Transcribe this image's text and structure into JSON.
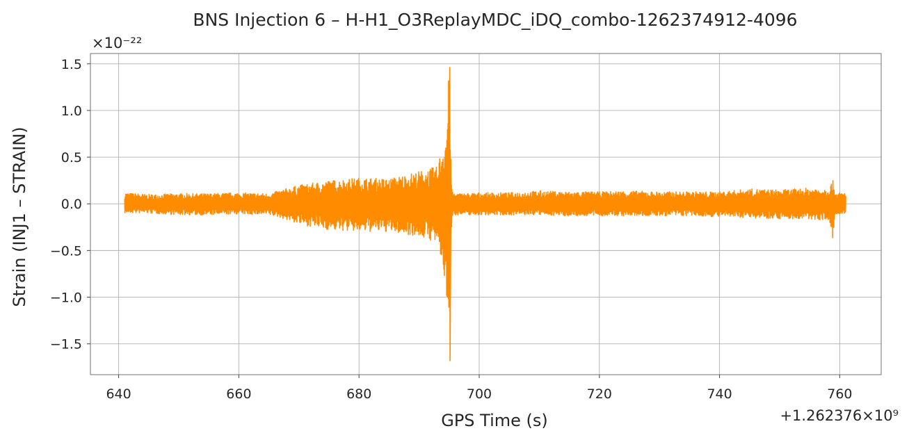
{
  "chart_data": {
    "type": "line",
    "title": "BNS Injection 6 – H-H1_O3ReplayMDC_iDQ_combo-1262374912-4096",
    "xlabel": "GPS Time (s)",
    "ylabel": "Strain (INJ1 – STRAIN)",
    "x_offset_label": "+1.262376×10⁹",
    "y_scale_label": "×10⁻²²",
    "x_ticks": [
      640,
      660,
      680,
      700,
      720,
      740,
      760
    ],
    "x_tick_labels": [
      "640",
      "660",
      "680",
      "700",
      "720",
      "740",
      "760"
    ],
    "y_ticks": [
      -1.5,
      -1.0,
      -0.5,
      0.0,
      0.5,
      1.0,
      1.5
    ],
    "y_tick_labels": [
      "−1.5",
      "−1.0",
      "−0.5",
      "0.0",
      "0.5",
      "1.0",
      "1.5"
    ],
    "xlim": [
      635.3,
      766.9
    ],
    "ylim": [
      -1.83,
      1.61
    ],
    "grid": true,
    "line_color": "#ff8c00",
    "series": [
      {
        "x": [
          641,
          645,
          650,
          655,
          660,
          665,
          667,
          670,
          675,
          680,
          685,
          690,
          693,
          694.5,
          695,
          695.2,
          695.5,
          696,
          700,
          705,
          710,
          715,
          720,
          725,
          730,
          735,
          740,
          745,
          750,
          755,
          758,
          759,
          759.2,
          760,
          761
        ],
        "upper": [
          0.12,
          0.1,
          0.11,
          0.11,
          0.12,
          0.11,
          0.15,
          0.2,
          0.25,
          0.28,
          0.27,
          0.35,
          0.4,
          0.8,
          1.46,
          0.6,
          0.14,
          0.11,
          0.12,
          0.12,
          0.14,
          0.13,
          0.13,
          0.14,
          0.13,
          0.13,
          0.13,
          0.16,
          0.15,
          0.17,
          0.17,
          0.26,
          0.12,
          0.12,
          0.12
        ],
        "lower": [
          -0.1,
          -0.1,
          -0.12,
          -0.12,
          -0.11,
          -0.12,
          -0.15,
          -0.22,
          -0.28,
          -0.3,
          -0.3,
          -0.35,
          -0.42,
          -0.9,
          -1.68,
          -0.6,
          -0.13,
          -0.12,
          -0.12,
          -0.12,
          -0.12,
          -0.13,
          -0.13,
          -0.13,
          -0.13,
          -0.13,
          -0.14,
          -0.15,
          -0.16,
          -0.17,
          -0.17,
          -0.42,
          -0.13,
          -0.12,
          -0.12
        ]
      }
    ]
  }
}
